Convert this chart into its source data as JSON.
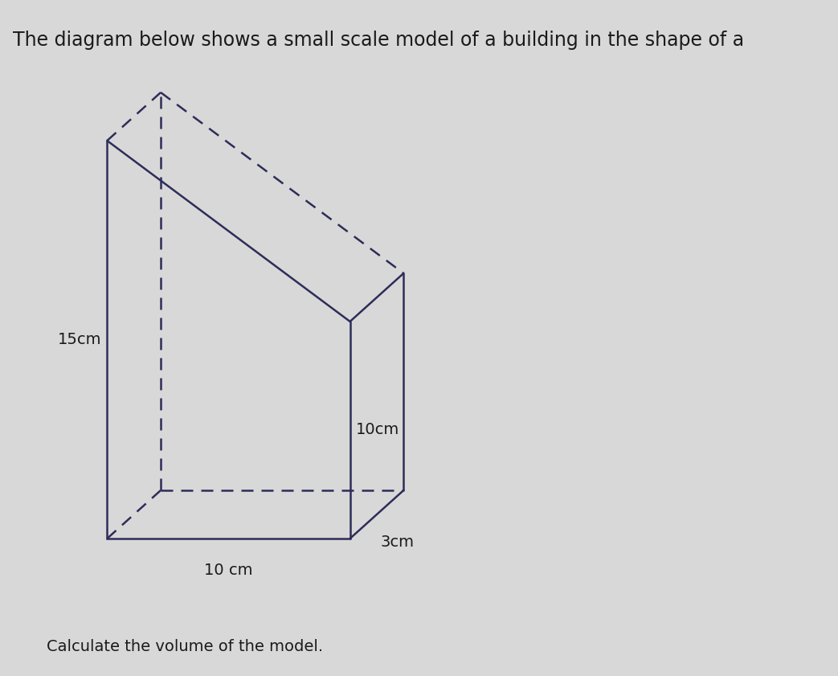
{
  "title_normal": "The diagram below shows a small scale model of a building in the shape of a",
  "title_fontsize": 17,
  "subtitle": "Calculate the volume of the model.",
  "subtitle_fontsize": 14,
  "background_color": "#d8d8d8",
  "shape_color": "#2d2d5a",
  "label_15cm": "15cm",
  "label_10cm_height": "10cm",
  "label_10cm_width": "10 cm",
  "label_3cm": "3cm",
  "label_fontsize": 14
}
